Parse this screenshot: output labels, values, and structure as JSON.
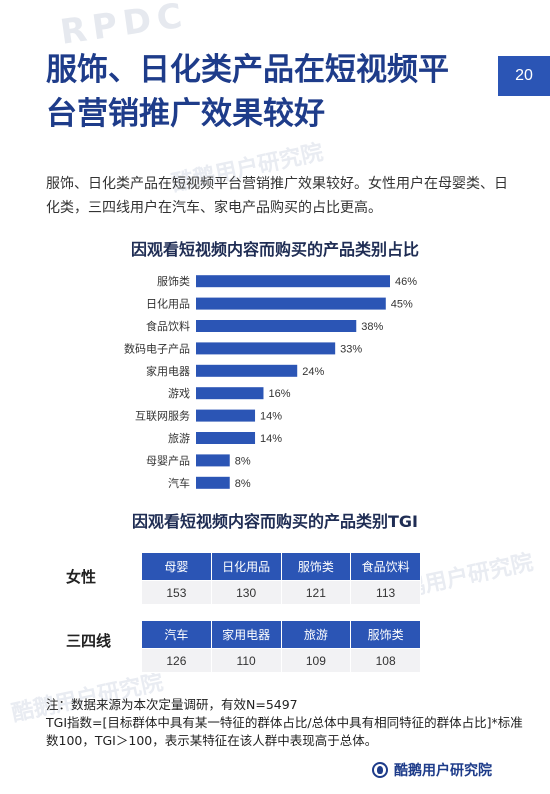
{
  "header": {
    "title": "服饰、日化类产品在短视频平台营销推广效果较好",
    "page_number": "20"
  },
  "lead_text": "服饰、日化类产品在短视频平台营销推广效果较好。女性用户在母婴类、日化类，三四线用户在汽车、家电产品购买的占比更高。",
  "chart_data": [
    {
      "type": "bar",
      "orientation": "horizontal",
      "title": "因观看短视频内容而购买的产品类别占比",
      "categories": [
        "服饰类",
        "日化用品",
        "食品饮料",
        "数码电子产品",
        "家用电器",
        "游戏",
        "互联网服务",
        "旅游",
        "母婴产品",
        "汽车"
      ],
      "values": [
        46,
        45,
        38,
        33,
        24,
        16,
        14,
        14,
        8,
        8
      ],
      "value_labels": [
        "46%",
        "45%",
        "38%",
        "33%",
        "24%",
        "16%",
        "14%",
        "14%",
        "8%",
        "8%"
      ],
      "unit": "%",
      "xlim": [
        0,
        50
      ],
      "bar_color": "#2b55b5",
      "grid": false,
      "legend": "none"
    },
    {
      "type": "table",
      "title": "因观看短视频内容而购买的产品类别TGI",
      "groups": [
        {
          "name": "女性",
          "categories": [
            "母婴",
            "日化用品",
            "服饰类",
            "食品饮料"
          ],
          "values": [
            "153",
            "130",
            "121",
            "113"
          ]
        },
        {
          "name": "三四线",
          "categories": [
            "汽车",
            "家用电器",
            "旅游",
            "服饰类"
          ],
          "values": [
            "126",
            "110",
            "109",
            "108"
          ]
        }
      ]
    }
  ],
  "notes": {
    "line1": "注：数据来源为本次定量调研，有效N=5497",
    "line2": "TGI指数=[目标群体中具有某一特征的群体占比/总体中具有相同特征的群体占比]*标准数100，TGI＞100，表示某特征在该人群中表现高于总体。"
  },
  "footer": {
    "brand": "酷鹅用户研究院"
  },
  "watermarks": {
    "rpdc": "RPDC",
    "brand": "酷鹅用户研究院"
  },
  "colors": {
    "accent": "#2b55b5",
    "title": "#1e3c8a"
  }
}
